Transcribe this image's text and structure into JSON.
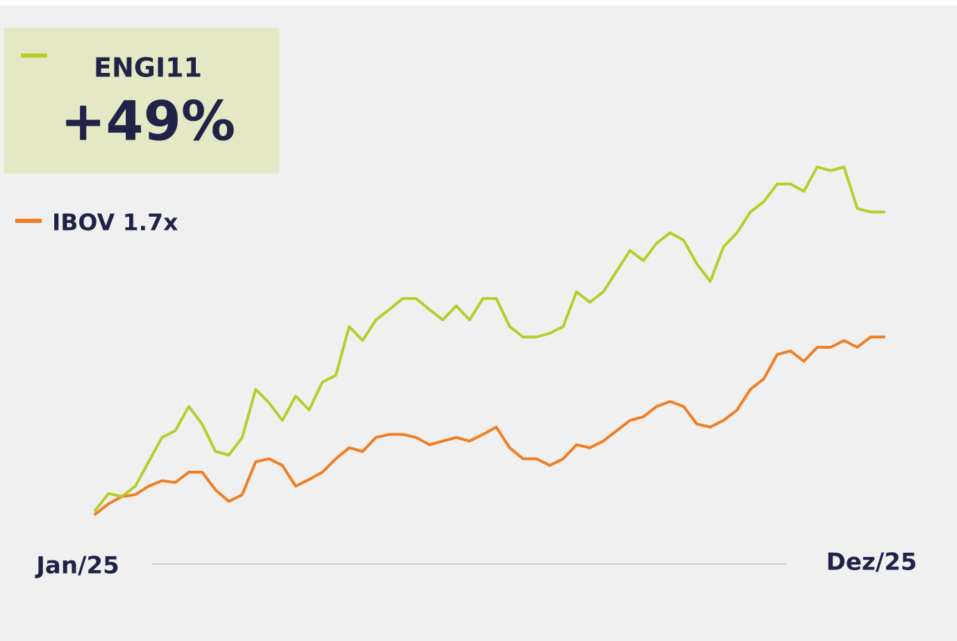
{
  "chart_data": {
    "type": "line",
    "annotation": "+49%",
    "categories": [
      "Jan/25",
      null,
      null,
      null,
      null,
      null,
      null,
      null,
      null,
      null,
      null,
      null,
      null,
      null,
      null,
      null,
      null,
      null,
      null,
      null,
      null,
      null,
      null,
      null,
      null,
      null,
      null,
      null,
      null,
      null,
      null,
      null,
      null,
      null,
      null,
      null,
      null,
      null,
      null,
      null,
      null,
      null,
      null,
      null,
      null,
      null,
      null,
      null,
      null,
      null,
      null,
      null,
      null,
      null,
      null,
      null,
      null,
      null,
      null,
      "Dez/25"
    ],
    "ylim": [
      -5,
      65
    ],
    "series": [
      {
        "name": "ENGI11",
        "color": "#b8cc2a",
        "values": [
          0,
          2.8,
          2.3,
          4.0,
          8.0,
          12.0,
          13.1,
          17.1,
          14.2,
          9.7,
          9.1,
          12.0,
          19.9,
          17.7,
          14.8,
          18.8,
          16.5,
          21.1,
          22.2,
          30.2,
          27.9,
          31.3,
          33.0,
          34.8,
          34.8,
          33.0,
          31.3,
          33.6,
          31.3,
          34.8,
          34.8,
          30.2,
          28.5,
          28.5,
          29.1,
          30.2,
          35.9,
          34.2,
          35.9,
          39.3,
          42.7,
          41.0,
          43.9,
          45.6,
          44.4,
          40.5,
          37.6,
          43.3,
          45.6,
          49.0,
          50.7,
          53.6,
          53.6,
          52.4,
          56.4,
          55.8,
          56.4,
          49.6,
          49.0,
          49.0
        ]
      },
      {
        "name": "IBOV 1.7x",
        "color": "#f07d22",
        "values": [
          -0.6,
          1.1,
          2.3,
          2.6,
          4.0,
          4.9,
          4.6,
          6.3,
          6.3,
          3.4,
          1.5,
          2.6,
          8.0,
          8.5,
          7.4,
          4.0,
          5.1,
          6.3,
          8.5,
          10.3,
          9.7,
          12.0,
          12.5,
          12.5,
          12.0,
          10.8,
          11.4,
          12.0,
          11.4,
          12.5,
          13.7,
          10.3,
          8.5,
          8.5,
          7.4,
          8.5,
          10.8,
          10.3,
          11.4,
          13.1,
          14.8,
          15.4,
          17.1,
          17.9,
          17.1,
          14.2,
          13.7,
          14.8,
          16.5,
          19.9,
          21.6,
          25.6,
          26.2,
          24.5,
          26.8,
          26.8,
          27.9,
          26.8,
          28.5,
          28.5
        ]
      }
    ]
  }
}
